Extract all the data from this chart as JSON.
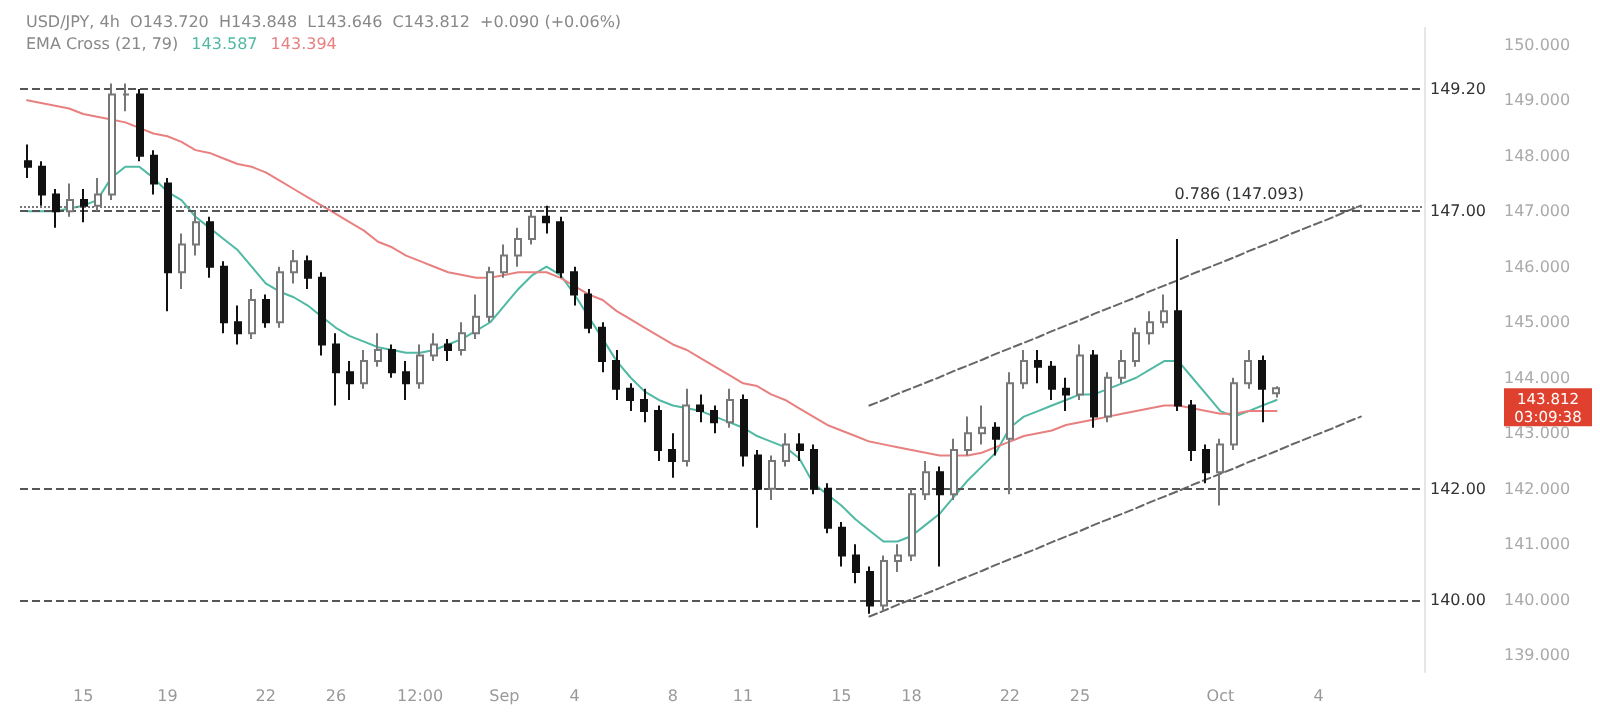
{
  "chart_data": {
    "type": "candlestick",
    "title": "USD/JPY, 4h",
    "legend_title": "EMA Cross (21, 79)",
    "annotations": [
      "O143.720",
      "H143.848",
      "L143.646",
      "C143.812",
      "+0.090 (+0.06%)",
      "143.587",
      "143.394",
      "143.812\n03:09:38"
    ],
    "categories": [
      null,
      null,
      null,
      null,
      "15",
      null,
      null,
      null,
      null,
      null,
      "19",
      null,
      null,
      null,
      null,
      null,
      null,
      "22",
      null,
      null,
      null,
      null,
      "26",
      null,
      null,
      null,
      null,
      null,
      "12:00",
      null,
      null,
      null,
      null,
      null,
      "Sep",
      null,
      null,
      null,
      null,
      "4",
      null,
      null,
      null,
      null,
      null,
      null,
      "8",
      null,
      null,
      null,
      null,
      "11",
      null,
      null,
      null,
      null,
      null,
      null,
      "15",
      null,
      null,
      null,
      null,
      "18",
      null,
      null,
      null,
      null,
      null,
      null,
      "22",
      null,
      null,
      null,
      null,
      "25",
      null,
      null,
      null,
      null,
      null,
      null,
      null,
      null,
      null,
      "Oct",
      null,
      null,
      null,
      null,
      null,
      null,
      "4",
      null,
      null,
      null,
      null,
      null,
      null,
      null
    ],
    "series": [
      {
        "ohlc": [
          [
            147.9,
            148.2,
            147.6,
            147.8
          ],
          [
            147.8,
            147.9,
            147.1,
            147.3
          ],
          [
            147.3,
            147.4,
            146.7,
            147.0
          ],
          [
            147.0,
            147.5,
            146.9,
            147.2
          ],
          [
            147.2,
            147.4,
            146.8,
            147.1
          ],
          [
            147.1,
            147.6,
            147.0,
            147.3
          ],
          [
            147.3,
            149.3,
            147.2,
            149.1
          ],
          [
            149.1,
            149.3,
            148.8,
            149.1
          ],
          [
            149.1,
            149.2,
            147.9,
            148.0
          ],
          [
            148.0,
            148.1,
            147.3,
            147.5
          ],
          [
            147.5,
            147.6,
            145.2,
            145.9
          ],
          [
            145.9,
            146.6,
            145.6,
            146.4
          ],
          [
            146.4,
            147.0,
            146.2,
            146.8
          ],
          [
            146.8,
            146.9,
            145.8,
            146.0
          ],
          [
            146.0,
            146.1,
            144.8,
            145.0
          ],
          [
            145.0,
            145.3,
            144.6,
            144.8
          ],
          [
            144.8,
            145.6,
            144.7,
            145.4
          ],
          [
            145.4,
            145.5,
            144.9,
            145.0
          ],
          [
            145.0,
            146.0,
            144.9,
            145.9
          ],
          [
            145.9,
            146.3,
            145.7,
            146.1
          ],
          [
            146.1,
            146.2,
            145.6,
            145.8
          ],
          [
            145.8,
            145.9,
            144.4,
            144.6
          ],
          [
            144.6,
            144.8,
            143.5,
            144.1
          ],
          [
            144.1,
            144.3,
            143.6,
            143.9
          ],
          [
            143.9,
            144.5,
            143.8,
            144.3
          ],
          [
            144.3,
            144.8,
            144.2,
            144.5
          ],
          [
            144.5,
            144.6,
            144.0,
            144.1
          ],
          [
            144.1,
            144.3,
            143.6,
            143.9
          ],
          [
            143.9,
            144.6,
            143.8,
            144.4
          ],
          [
            144.4,
            144.8,
            144.3,
            144.6
          ],
          [
            144.6,
            144.7,
            144.3,
            144.5
          ],
          [
            144.5,
            145.0,
            144.4,
            144.8
          ],
          [
            144.8,
            145.5,
            144.7,
            145.1
          ],
          [
            145.1,
            146.0,
            145.0,
            145.9
          ],
          [
            145.9,
            146.4,
            145.8,
            146.2
          ],
          [
            146.2,
            146.7,
            146.0,
            146.5
          ],
          [
            146.5,
            147.0,
            146.4,
            146.9
          ],
          [
            146.9,
            147.1,
            146.6,
            146.8
          ],
          [
            146.8,
            146.9,
            145.8,
            145.9
          ],
          [
            145.9,
            146.0,
            145.3,
            145.5
          ],
          [
            145.5,
            145.6,
            144.8,
            144.9
          ],
          [
            144.9,
            145.0,
            144.1,
            144.3
          ],
          [
            144.3,
            144.5,
            143.6,
            143.8
          ],
          [
            143.8,
            143.9,
            143.4,
            143.6
          ],
          [
            143.6,
            143.8,
            143.2,
            143.4
          ],
          [
            143.4,
            143.5,
            142.5,
            142.7
          ],
          [
            142.7,
            143.0,
            142.2,
            142.5
          ],
          [
            142.5,
            143.8,
            142.4,
            143.5
          ],
          [
            143.5,
            143.7,
            143.2,
            143.4
          ],
          [
            143.4,
            143.5,
            143.0,
            143.2
          ],
          [
            143.2,
            143.8,
            143.1,
            143.6
          ],
          [
            143.6,
            143.7,
            142.4,
            142.6
          ],
          [
            142.6,
            142.7,
            141.3,
            142.0
          ],
          [
            142.0,
            142.6,
            141.8,
            142.5
          ],
          [
            142.5,
            143.0,
            142.4,
            142.8
          ],
          [
            142.8,
            143.0,
            142.5,
            142.7
          ],
          [
            142.7,
            142.8,
            141.9,
            142.0
          ],
          [
            142.0,
            142.1,
            141.2,
            141.3
          ],
          [
            141.3,
            141.4,
            140.6,
            140.8
          ],
          [
            140.8,
            141.0,
            140.3,
            140.5
          ],
          [
            140.5,
            140.6,
            139.75,
            139.9
          ],
          [
            139.9,
            140.8,
            139.8,
            140.7
          ],
          [
            140.7,
            141.0,
            140.5,
            140.8
          ],
          [
            140.8,
            142.0,
            140.7,
            141.9
          ],
          [
            141.9,
            142.5,
            141.8,
            142.3
          ],
          [
            142.3,
            142.4,
            140.6,
            141.9
          ],
          [
            141.9,
            142.9,
            141.8,
            142.7
          ],
          [
            142.7,
            143.3,
            142.6,
            143.0
          ],
          [
            143.0,
            143.5,
            142.8,
            143.1
          ],
          [
            143.1,
            143.2,
            142.6,
            142.9
          ],
          [
            142.9,
            144.1,
            141.9,
            143.9
          ],
          [
            143.9,
            144.5,
            143.8,
            144.3
          ],
          [
            144.3,
            144.5,
            143.9,
            144.2
          ],
          [
            144.2,
            144.3,
            143.6,
            143.8
          ],
          [
            143.8,
            144.0,
            143.4,
            143.7
          ],
          [
            143.7,
            144.6,
            143.6,
            144.4
          ],
          [
            144.4,
            144.5,
            143.1,
            143.3
          ],
          [
            143.3,
            144.1,
            143.2,
            144.0
          ],
          [
            144.0,
            144.5,
            143.9,
            144.3
          ],
          [
            144.3,
            144.9,
            144.2,
            144.8
          ],
          [
            144.8,
            145.2,
            144.6,
            145.0
          ],
          [
            145.0,
            145.5,
            144.9,
            145.2
          ],
          [
            145.2,
            146.5,
            143.4,
            143.5
          ],
          [
            143.5,
            143.6,
            142.5,
            142.7
          ],
          [
            142.7,
            142.8,
            142.1,
            142.3
          ],
          [
            142.3,
            142.9,
            141.7,
            142.8
          ],
          [
            142.8,
            144.0,
            142.7,
            143.9
          ],
          [
            143.9,
            144.5,
            143.8,
            144.3
          ],
          [
            144.3,
            144.4,
            143.2,
            143.8
          ],
          [
            143.72,
            143.848,
            143.646,
            143.812
          ],
          null,
          null,
          null,
          null,
          null,
          null,
          null,
          null,
          null,
          null
        ]
      },
      {
        "type": "line",
        "color": "#4fb9a3",
        "values": [
          147.0,
          147.0,
          147.0,
          147.05,
          147.1,
          147.2,
          147.6,
          147.8,
          147.8,
          147.6,
          147.35,
          147.2,
          146.9,
          146.7,
          146.5,
          146.3,
          146.0,
          145.7,
          145.55,
          145.45,
          145.3,
          145.1,
          144.9,
          144.75,
          144.65,
          144.55,
          144.5,
          144.45,
          144.45,
          144.5,
          144.6,
          144.7,
          144.85,
          145.0,
          145.3,
          145.6,
          145.85,
          146.0,
          145.85,
          145.5,
          145.1,
          144.7,
          144.3,
          144.0,
          143.75,
          143.6,
          143.5,
          143.45,
          143.4,
          143.3,
          143.2,
          143.1,
          142.95,
          142.85,
          142.75,
          142.55,
          142.1,
          141.9,
          141.7,
          141.45,
          141.25,
          141.05,
          141.05,
          141.15,
          141.35,
          141.55,
          141.85,
          142.15,
          142.4,
          142.65,
          143.1,
          143.3,
          143.4,
          143.5,
          143.6,
          143.7,
          143.7,
          143.8,
          143.9,
          144.0,
          144.15,
          144.3,
          144.3,
          144.0,
          143.7,
          143.4,
          143.3,
          143.4,
          143.5,
          143.6,
          null,
          null,
          null,
          null,
          null,
          null,
          null,
          null,
          null,
          null
        ]
      },
      {
        "type": "line",
        "color": "#e88080",
        "values": [
          149.0,
          148.95,
          148.9,
          148.85,
          148.75,
          148.7,
          148.65,
          148.6,
          148.5,
          148.4,
          148.35,
          148.25,
          148.1,
          148.05,
          147.95,
          147.85,
          147.8,
          147.7,
          147.55,
          147.4,
          147.25,
          147.1,
          146.95,
          146.8,
          146.65,
          146.45,
          146.35,
          146.2,
          146.1,
          146.0,
          145.9,
          145.85,
          145.8,
          145.8,
          145.85,
          145.9,
          145.9,
          145.9,
          145.8,
          145.65,
          145.5,
          145.4,
          145.2,
          145.05,
          144.9,
          144.75,
          144.6,
          144.5,
          144.35,
          144.2,
          144.05,
          143.9,
          143.85,
          143.7,
          143.6,
          143.45,
          143.3,
          143.15,
          143.05,
          142.95,
          142.85,
          142.8,
          142.75,
          142.7,
          142.65,
          142.6,
          142.6,
          142.6,
          142.65,
          142.75,
          142.85,
          142.95,
          143.0,
          143.05,
          143.15,
          143.2,
          143.25,
          143.3,
          143.35,
          143.4,
          143.45,
          143.5,
          143.5,
          143.45,
          143.4,
          143.35,
          143.35,
          143.4,
          143.4,
          143.4,
          null,
          null,
          null,
          null,
          null,
          null,
          null,
          null,
          null,
          null
        ]
      },
      {
        "type": "line",
        "color": "#666666",
        "line_style": "dashed",
        "values": [
          null,
          null,
          null,
          null,
          null,
          null,
          null,
          null,
          null,
          null,
          null,
          null,
          null,
          null,
          null,
          null,
          null,
          null,
          null,
          null,
          null,
          null,
          null,
          null,
          null,
          null,
          null,
          null,
          null,
          null,
          null,
          null,
          null,
          null,
          null,
          null,
          null,
          null,
          null,
          null,
          null,
          null,
          null,
          null,
          null,
          null,
          null,
          null,
          null,
          null,
          null,
          null,
          null,
          null,
          null,
          null,
          null,
          null,
          null,
          null,
          143.5,
          143.6,
          143.71,
          143.81,
          143.91,
          144.01,
          144.12,
          144.22,
          144.32,
          144.43,
          144.53,
          144.63,
          144.73,
          144.84,
          144.94,
          145.04,
          145.15,
          145.25,
          145.35,
          145.45,
          145.56,
          145.66,
          145.76,
          145.87,
          145.97,
          146.07,
          146.17,
          146.28,
          146.38,
          146.48,
          146.59,
          146.69,
          146.79,
          146.89,
          147.0,
          147.1,
          null,
          null,
          null,
          null
        ]
      },
      {
        "type": "line",
        "color": "#666666",
        "line_style": "dashed",
        "values": [
          null,
          null,
          null,
          null,
          null,
          null,
          null,
          null,
          null,
          null,
          null,
          null,
          null,
          null,
          null,
          null,
          null,
          null,
          null,
          null,
          null,
          null,
          null,
          null,
          null,
          null,
          null,
          null,
          null,
          null,
          null,
          null,
          null,
          null,
          null,
          null,
          null,
          null,
          null,
          null,
          null,
          null,
          null,
          null,
          null,
          null,
          null,
          null,
          null,
          null,
          null,
          null,
          null,
          null,
          null,
          null,
          null,
          null,
          null,
          null,
          139.7,
          139.8,
          139.91,
          140.01,
          140.11,
          140.21,
          140.32,
          140.42,
          140.52,
          140.63,
          140.73,
          140.83,
          140.93,
          141.04,
          141.14,
          141.24,
          141.35,
          141.45,
          141.55,
          141.65,
          141.76,
          141.86,
          141.96,
          142.07,
          142.17,
          142.27,
          142.37,
          142.48,
          142.58,
          142.68,
          142.79,
          142.89,
          142.99,
          143.09,
          143.2,
          143.3,
          null,
          null,
          null,
          null
        ]
      }
    ],
    "ylim": [
      138.7,
      150.3
    ],
    "yticks": [
      {
        "value": 139,
        "label": "139.000"
      },
      {
        "value": 140,
        "label": "140.000"
      },
      {
        "value": 141,
        "label": "141.000"
      },
      {
        "value": 142,
        "label": "142.000"
      },
      {
        "value": 143,
        "label": "143.000"
      },
      {
        "value": 144,
        "label": "144.000"
      },
      {
        "value": 145,
        "label": "145.000"
      },
      {
        "value": 146,
        "label": "146.000"
      },
      {
        "value": 147,
        "label": "147.000"
      },
      {
        "value": 148,
        "label": "148.000"
      },
      {
        "value": 149,
        "label": "149.000"
      },
      {
        "value": 150,
        "label": "150.000"
      }
    ],
    "ref_lines": [
      {
        "axis": "y",
        "value": 149.2,
        "label": "149.20",
        "line_style": "dashed",
        "color": "#555555"
      },
      {
        "axis": "y",
        "value": 147.093,
        "label": "0.786 (147.093)",
        "line_style": "dotted",
        "color": "#777777"
      },
      {
        "axis": "y",
        "value": 147.0,
        "label": "147.00",
        "line_style": "dashed",
        "color": "#555555"
      },
      {
        "axis": "y",
        "value": 142.0,
        "label": "142.00",
        "line_style": "dashed",
        "color": "#555555"
      },
      {
        "axis": "y",
        "value": 140.0,
        "label": "140.00",
        "line_style": "dashed",
        "color": "#555555"
      }
    ],
    "grid": false,
    "marker": "none"
  }
}
